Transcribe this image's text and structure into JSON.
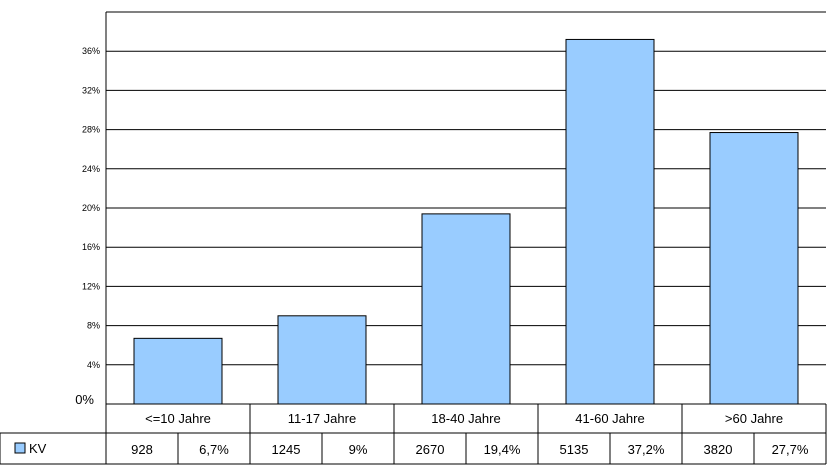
{
  "chart_data": {
    "type": "bar",
    "categories": [
      "<=10 Jahre",
      "11-17 Jahre",
      "18-40 Jahre",
      "41-60 Jahre",
      ">60 Jahre"
    ],
    "series": [
      {
        "name": "KV",
        "values": [
          6.7,
          9,
          19.4,
          37.2,
          27.7
        ],
        "counts": [
          "928",
          "1245",
          "2670",
          "5135",
          "3820"
        ],
        "percent_labels": [
          "6,7%",
          "9%",
          "19,4%",
          "37,2%",
          "27,7%"
        ]
      }
    ],
    "ylim": [
      0,
      40
    ],
    "yticks": [
      {
        "value": 0,
        "label": "0%"
      },
      {
        "value": 4,
        "label": "4%"
      },
      {
        "value": 8,
        "label": "8%"
      },
      {
        "value": 12,
        "label": "12%"
      },
      {
        "value": 16,
        "label": "16%"
      },
      {
        "value": 20,
        "label": "20%"
      },
      {
        "value": 24,
        "label": "24%"
      },
      {
        "value": 28,
        "label": "28%"
      },
      {
        "value": 32,
        "label": "32%"
      },
      {
        "value": 36,
        "label": "36%"
      }
    ],
    "grid": true,
    "legend": "data-table",
    "bar_color": "#99ccff"
  }
}
